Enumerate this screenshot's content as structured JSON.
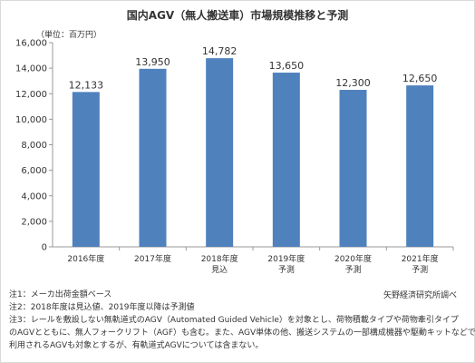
{
  "colors": {
    "bar": "#4f81bd",
    "text": "#333333",
    "axis": "#999999"
  },
  "chart_data": {
    "type": "bar",
    "title": "国内AGV（無人搬送車）市場規模推移と予測",
    "unit_label": "（単位：百万円）",
    "categories": [
      [
        "2016年度"
      ],
      [
        "2017年度"
      ],
      [
        "2018年度",
        "見込"
      ],
      [
        "2019年度",
        "予測"
      ],
      [
        "2020年度",
        "予測"
      ],
      [
        "2021年度",
        "予測"
      ]
    ],
    "values": [
      12133,
      13950,
      14782,
      13650,
      12300,
      12650
    ],
    "value_labels": [
      "12,133",
      "13,950",
      "14,782",
      "13,650",
      "12,300",
      "12,650"
    ],
    "ylim": [
      0,
      16000
    ],
    "yticks": [
      "0",
      "2,000",
      "4,000",
      "6,000",
      "8,000",
      "10,000",
      "12,000",
      "14,000",
      "16,000"
    ],
    "grid": false
  },
  "notes": [
    "注1：メーカ出荷金額ベース",
    "注2：2018年度は見込値、2019年度以降は予測値",
    "注3：レールを敷設しない無軌道式のAGV（Automated Guided Vehicle）を対象とし、荷物積載タイプや荷物牽引タイプ",
    "のAGVとともに、無人フォークリフト（AGF）も含む。また、AGV単体の他、搬送システムの一部構成機器や駆動キットなどで",
    "利用されるAGVも対象とするが、有軌道式AGVについては含まない。"
  ],
  "source": "矢野経済研究所調べ"
}
